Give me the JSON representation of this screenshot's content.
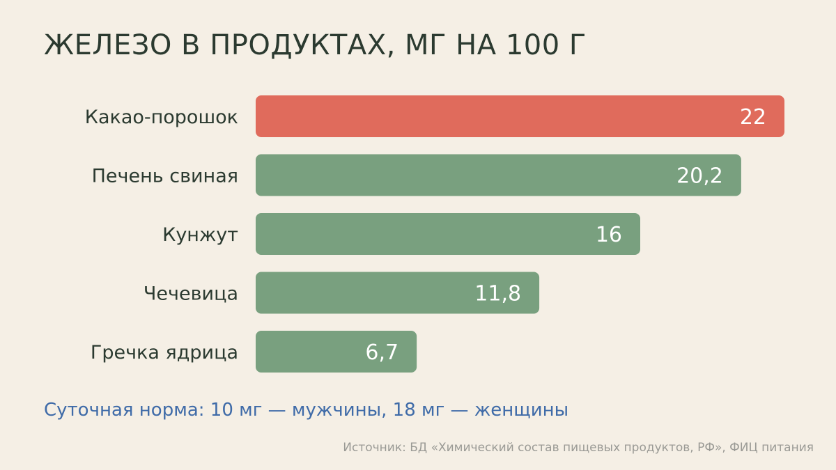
{
  "chart_data": {
    "type": "bar",
    "orientation": "horizontal",
    "title": "ЖЕЛЕЗО В ПРОДУКТАХ, МГ НА 100 Г",
    "categories": [
      "Какао-порошок",
      "Печень свиная",
      "Кунжут",
      "Чечевица",
      "Гречка ядрица"
    ],
    "values": [
      22,
      20.2,
      16,
      11.8,
      6.7
    ],
    "value_labels": [
      "22",
      "20,2",
      "16",
      "11,8",
      "6,7"
    ],
    "colors": [
      "#e06b5c",
      "#79a07f",
      "#79a07f",
      "#79a07f",
      "#79a07f"
    ],
    "xlim": [
      0,
      22
    ],
    "grid": false
  },
  "note": "Суточная норма: 10 мг — мужчины, 18 мг — женщины",
  "source": "Источник: БД «Химический состав пищевых продуктов, РФ», ФИЦ питания"
}
